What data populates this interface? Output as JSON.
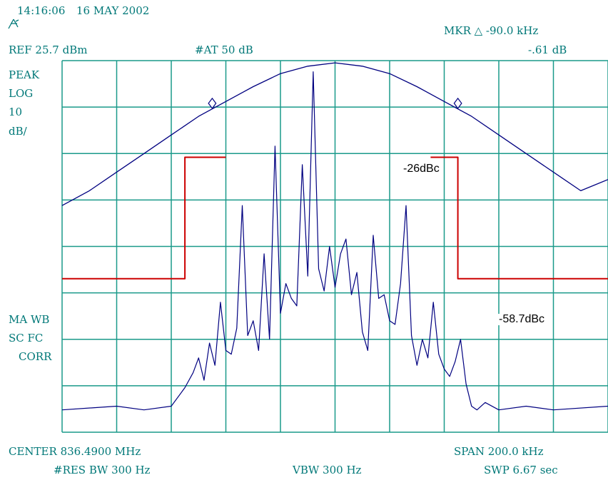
{
  "header": {
    "time": "14:16:06",
    "date": "16 MAY 2002",
    "marker": "MKR △ -90.0 kHz",
    "ref_level": "REF 25.7 dBm",
    "attenuation": "#AT 50 dB",
    "marker_value": "-.61 dB"
  },
  "left_labels": {
    "detector": "PEAK",
    "scale_type": "LOG",
    "scale_value": "10",
    "scale_unit": "dB/",
    "mode1": "MA WB",
    "mode2": "SC FC",
    "mode3": "CORR"
  },
  "footer": {
    "center": "CENTER 836.4900 MHz",
    "span": "SPAN 200.0 kHz",
    "rbw": "#RES BW 300 Hz",
    "vbw": "VBW 300 Hz",
    "sweep": "SWP 6.67  sec"
  },
  "colors": {
    "grid": "#1a9a8a",
    "trace": "#000080",
    "mask": "#cc0000",
    "text": "#007878"
  },
  "chart_data": {
    "type": "line",
    "x_unit": "kHz offset from center",
    "xlim": [
      -100,
      100
    ],
    "y_unit": "dB below reference",
    "ylim": [
      -100,
      0
    ],
    "grid": true,
    "series": [
      {
        "kind": "trace",
        "x": [
          -100,
          -80,
          -70,
          -60,
          -55,
          -52,
          -50,
          -48,
          -46,
          -44,
          -42,
          -40,
          -38,
          -36,
          -34,
          -32,
          -30,
          -28,
          -26,
          -24,
          -22,
          -20,
          -18,
          -16,
          -14,
          -12,
          -10,
          -8,
          -6,
          -4,
          -2,
          0,
          2,
          4,
          6,
          8,
          10,
          12,
          14,
          16,
          18,
          20,
          22,
          24,
          26,
          28,
          30,
          32,
          34,
          36,
          38,
          40,
          42,
          44,
          46,
          48,
          50,
          52,
          55,
          60,
          70,
          80,
          100
        ],
        "y": [
          -94,
          -93,
          -94,
          -93,
          -88,
          -84,
          -80,
          -86,
          -76,
          -82,
          -65,
          -78,
          -79,
          -72,
          -39,
          -74,
          -70,
          -78,
          -52,
          -75,
          -23,
          -68,
          -60,
          -64,
          -66,
          -28,
          -58,
          -3,
          -56,
          -62,
          -50,
          -61,
          -52,
          -48,
          -63,
          -57,
          -73,
          -78,
          -47,
          -64,
          -63,
          -70,
          -71,
          -60,
          -39,
          -74,
          -82,
          -75,
          -80,
          -65,
          -79,
          -83,
          -85,
          -81,
          -75,
          -87,
          -93,
          -94,
          -92,
          -94,
          -93,
          -94,
          -93
        ]
      },
      {
        "kind": "filter-shape",
        "x": [
          -100,
          -90,
          -80,
          -70,
          -60,
          -50,
          -40,
          -30,
          -20,
          -10,
          0,
          10,
          20,
          30,
          40,
          50,
          60,
          70,
          80,
          90,
          100
        ],
        "y": [
          -39,
          -35,
          -30,
          -25,
          -20,
          -15,
          -11,
          -7,
          -3.5,
          -1.5,
          -0.6,
          -1.5,
          -3.5,
          -7,
          -11,
          -15,
          -20,
          -25,
          -30,
          -35,
          -32
        ]
      },
      {
        "kind": "mask",
        "x": [
          -100,
          -55,
          -55,
          -40
        ],
        "y": [
          -58.7,
          -58.7,
          -26,
          -26
        ]
      },
      {
        "kind": "mask",
        "x": [
          35,
          45,
          45,
          100
        ],
        "y": [
          -26,
          -26,
          -58.7,
          -58.7
        ]
      }
    ],
    "markers": [
      {
        "x": -45,
        "y": -11.5
      },
      {
        "x": 45,
        "y": -11.5
      }
    ],
    "annotations": {
      "upper": "-26dBc",
      "lower": "-58.7dBc"
    }
  }
}
